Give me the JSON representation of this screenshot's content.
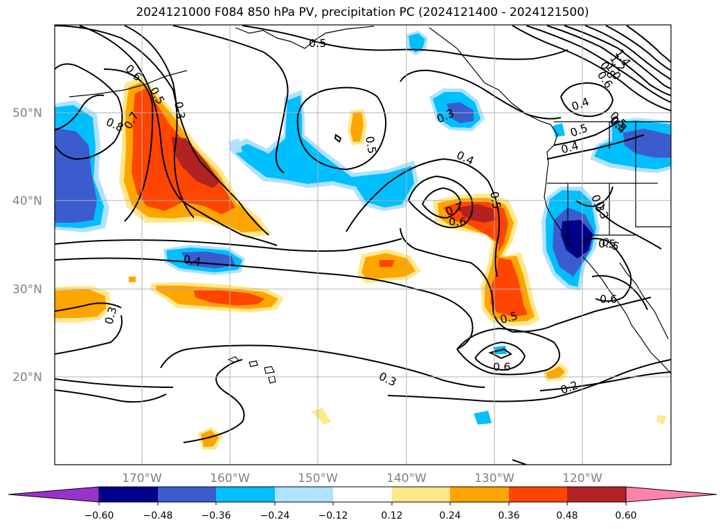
{
  "title": "2024121000 F084 850 hPa PV, precipitation PC (2024121400 - 2024121500)",
  "lat_labels": [
    "50°N",
    "40°N",
    "30°N",
    "20°N"
  ],
  "lon_labels": [
    "170°W",
    "160°W",
    "150°W",
    "140°W",
    "130°W",
    "120°W"
  ],
  "colorbar": {
    "ticks": [
      "−0.60",
      "−0.48",
      "−0.36",
      "−0.24",
      "−0.12",
      "0.12",
      "0.24",
      "0.36",
      "0.48",
      "0.60"
    ],
    "colors": [
      "#9932cc",
      "#00008b",
      "#3a5ccd",
      "#00bfff",
      "#b0e2ff",
      "#ffffff",
      "#ffe88a",
      "#ffa500",
      "#ff4500",
      "#b22222",
      "#ff82ab"
    ]
  },
  "contour_labels": [
    "0.5",
    "0.6",
    "0.5",
    "0.3",
    "0.7",
    "0.8",
    "0.5",
    "0.3",
    "0.4",
    "0.5",
    "0.4",
    "0.7",
    "0.6",
    "0.5",
    "0.4",
    "0.3",
    "0.5",
    "0.4",
    "0.5",
    "0.4",
    "0.3",
    "0.5",
    "1.4",
    "1.2",
    "1.0",
    "0.8",
    "0.6",
    "0.5",
    "0.6",
    "0.5",
    "0.6",
    "0.3",
    "0.2",
    "0.3"
  ]
}
